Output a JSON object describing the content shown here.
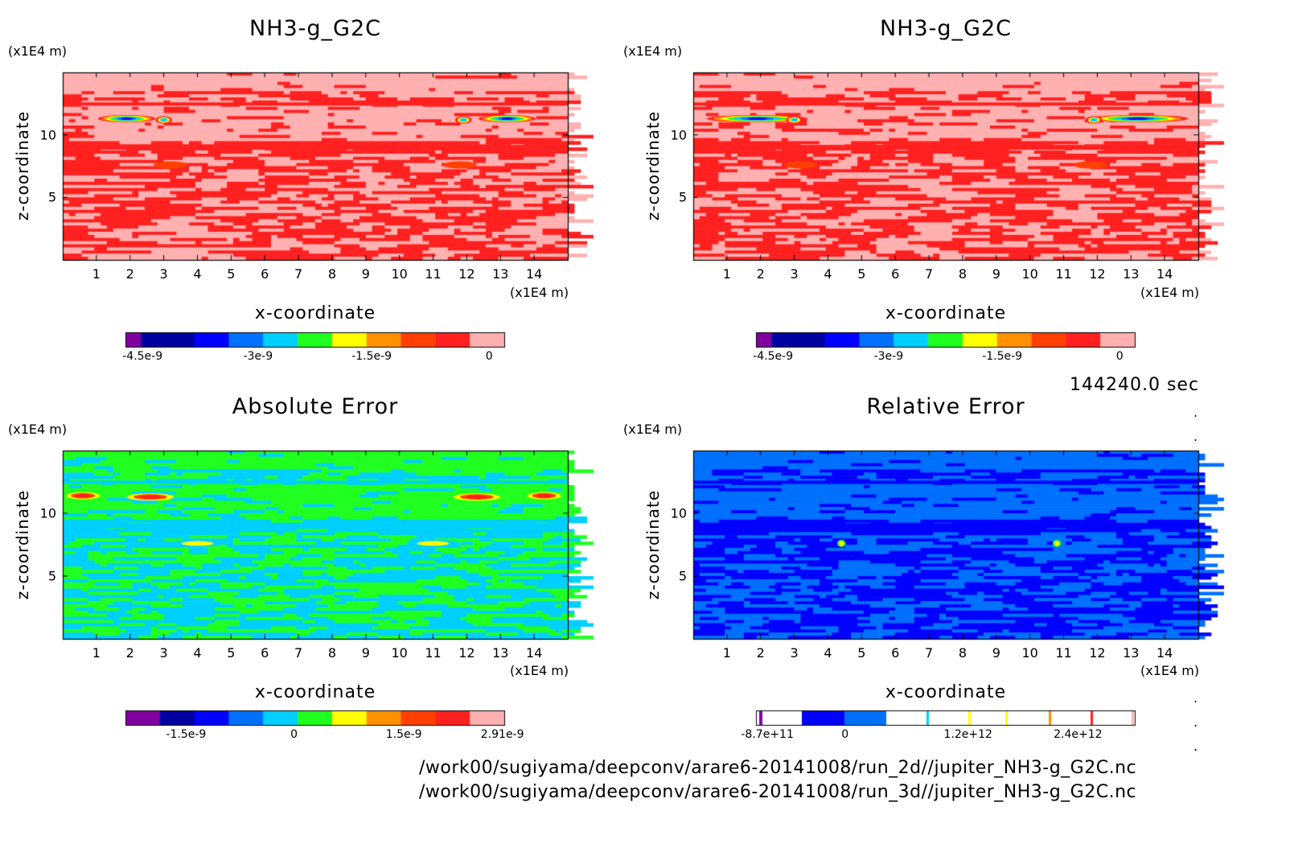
{
  "time_label": "144240.0 sec",
  "file_paths": [
    "/work00/sugiyama/deepconv/arare6-20141008/run_2d//jupiter_NH3-g_G2C.nc",
    "/work00/sugiyama/deepconv/arare6-20141008/run_3d//jupiter_NH3-g_G2C.nc"
  ],
  "colors": {
    "scale": [
      "#8000a0",
      "#0000a0",
      "#0000ff",
      "#0070ff",
      "#00d0ff",
      "#20ff20",
      "#ffff00",
      "#ff9000",
      "#ff4000",
      "#ff2020",
      "#ffb0b0"
    ],
    "axis": "#000000"
  },
  "chart_data": [
    {
      "type": "heatmap",
      "title": "NH3-g_G2C",
      "xlabel": "x-coordinate",
      "ylabel": "z-coordinate",
      "x_unit": "(x1E4 m)",
      "y_unit": "(x1E4 m)",
      "x_ticks": [
        "1",
        "2",
        "3",
        "4",
        "5",
        "6",
        "7",
        "8",
        "9",
        "10",
        "11",
        "12",
        "13",
        "14"
      ],
      "y_ticks": [
        "5",
        "10"
      ],
      "xlim": [
        0,
        15
      ],
      "ylim": [
        0,
        15
      ],
      "colorbar": {
        "levels": 11,
        "labels": [
          "-4.5e-9",
          "-3e-9",
          "-1.5e-9",
          "0"
        ]
      },
      "dominant_level": 10,
      "secondary_level": 9
    },
    {
      "type": "heatmap",
      "title": "NH3-g_G2C",
      "xlabel": "x-coordinate",
      "ylabel": "z-coordinate",
      "x_unit": "(x1E4 m)",
      "y_unit": "(x1E4 m)",
      "x_ticks": [
        "1",
        "2",
        "3",
        "4",
        "5",
        "6",
        "7",
        "8",
        "9",
        "10",
        "11",
        "12",
        "13",
        "14"
      ],
      "y_ticks": [
        "5",
        "10"
      ],
      "xlim": [
        0,
        15
      ],
      "ylim": [
        0,
        15
      ],
      "colorbar": {
        "levels": 11,
        "labels": [
          "-4.5e-9",
          "-3e-9",
          "-1.5e-9",
          "0"
        ]
      },
      "dominant_level": 10,
      "secondary_level": 9
    },
    {
      "type": "heatmap",
      "title": "Absolute Error",
      "xlabel": "x-coordinate",
      "ylabel": "z-coordinate",
      "x_unit": "(x1E4 m)",
      "y_unit": "(x1E4 m)",
      "x_ticks": [
        "1",
        "2",
        "3",
        "4",
        "5",
        "6",
        "7",
        "8",
        "9",
        "10",
        "11",
        "12",
        "13",
        "14"
      ],
      "y_ticks": [
        "5",
        "10"
      ],
      "xlim": [
        0,
        15
      ],
      "ylim": [
        0,
        15
      ],
      "colorbar": {
        "levels": 11,
        "labels": [
          "-1.5e-9",
          "0",
          "1.5e-9",
          "2.91e-9"
        ]
      },
      "dominant_level": 5,
      "secondary_level": 4
    },
    {
      "type": "heatmap",
      "title": "Relative Error",
      "xlabel": "x-coordinate",
      "ylabel": "z-coordinate",
      "x_unit": "(x1E4 m)",
      "y_unit": "(x1E4 m)",
      "x_ticks": [
        "1",
        "2",
        "3",
        "4",
        "5",
        "6",
        "7",
        "8",
        "9",
        "10",
        "11",
        "12",
        "13",
        "14"
      ],
      "y_ticks": [
        "5",
        "10"
      ],
      "xlim": [
        0,
        15
      ],
      "ylim": [
        0,
        15
      ],
      "colorbar": {
        "levels": 11,
        "labels": [
          "-8.7e+11",
          "0",
          "1.2e+12",
          "2.4e+12"
        ]
      },
      "dominant_level": 3,
      "secondary_level": 2
    }
  ]
}
